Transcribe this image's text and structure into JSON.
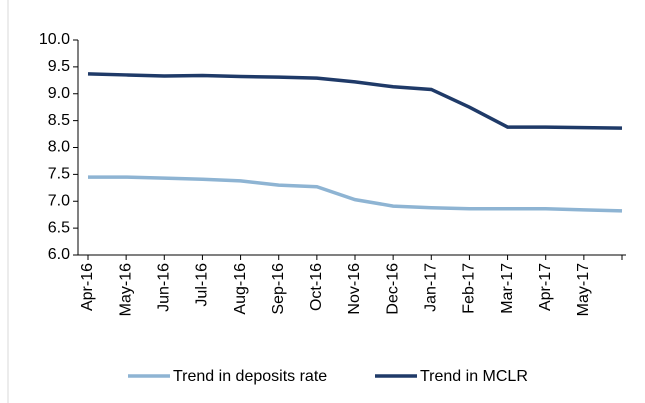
{
  "chart_data": {
    "type": "line",
    "categories": [
      "Apr-16",
      "May-16",
      "Jun-16",
      "Jul-16",
      "Aug-16",
      "Sep-16",
      "Oct-16",
      "Nov-16",
      "Dec-16",
      "Jan-17",
      "Feb-17",
      "Mar-17",
      "Apr-17",
      "May-17",
      null
    ],
    "series": [
      {
        "name": "Trend in deposits rate",
        "color": "#8eb4d3",
        "values": [
          7.45,
          7.45,
          7.43,
          7.41,
          7.38,
          7.3,
          7.27,
          7.03,
          6.91,
          6.88,
          6.86,
          6.86,
          6.86,
          6.84,
          6.82
        ]
      },
      {
        "name": "Trend in MCLR",
        "color": "#1f3a68",
        "values": [
          9.37,
          9.35,
          9.33,
          9.34,
          9.32,
          9.31,
          9.29,
          9.22,
          9.13,
          9.08,
          8.75,
          8.38,
          8.38,
          8.37,
          8.36
        ]
      }
    ],
    "ylim": [
      6.0,
      10.0
    ],
    "yticks": [
      {
        "value": 6.0,
        "label": "6.0"
      },
      {
        "value": 6.5,
        "label": "6.5"
      },
      {
        "value": 7.0,
        "label": "7.0"
      },
      {
        "value": 7.5,
        "label": "7.5"
      },
      {
        "value": 8.0,
        "label": "8.0"
      },
      {
        "value": 8.5,
        "label": "8.5"
      },
      {
        "value": 9.0,
        "label": "9.0"
      },
      {
        "value": 9.5,
        "label": "9.5"
      },
      {
        "value": 10.0,
        "label": "10.0"
      }
    ],
    "legend": "bottom"
  }
}
